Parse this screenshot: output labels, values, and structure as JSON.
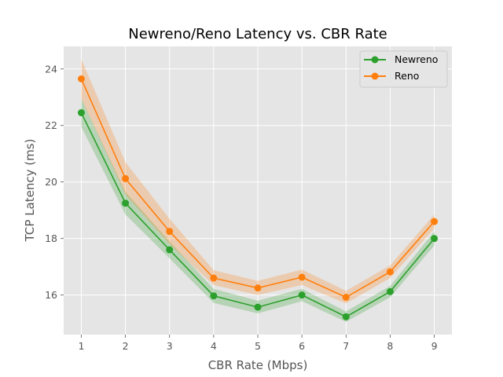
{
  "chart_data": {
    "type": "line",
    "title": "Newreno/Reno Latency vs. CBR Rate",
    "xlabel": "CBR Rate (Mbps)",
    "ylabel": "TCP Latency (ms)",
    "x": [
      1,
      2,
      3,
      4,
      5,
      6,
      7,
      8,
      9
    ],
    "xlim": [
      0.6,
      9.4
    ],
    "ylim": [
      14.6,
      24.8
    ],
    "xticks": [
      "1",
      "2",
      "3",
      "4",
      "5",
      "6",
      "7",
      "8",
      "9"
    ],
    "yticks": [
      "16",
      "18",
      "20",
      "22",
      "24"
    ],
    "grid": true,
    "legend_position": "top-right",
    "series": [
      {
        "name": "Newreno",
        "color": "#2ca02c",
        "values": [
          22.45,
          19.25,
          17.6,
          15.97,
          15.57,
          16.0,
          15.23,
          16.12,
          18.0
        ],
        "lower": [
          21.95,
          18.85,
          17.3,
          15.72,
          15.35,
          15.78,
          15.05,
          15.92,
          17.75
        ],
        "upper": [
          22.95,
          19.65,
          17.9,
          16.22,
          15.8,
          16.22,
          15.42,
          16.32,
          18.25
        ]
      },
      {
        "name": "Reno",
        "color": "#ff7f0e",
        "values": [
          23.65,
          20.12,
          18.25,
          16.6,
          16.25,
          16.63,
          15.92,
          16.82,
          18.6
        ],
        "lower": [
          22.95,
          19.55,
          17.8,
          16.35,
          16.0,
          16.35,
          15.7,
          16.6,
          18.35
        ],
        "upper": [
          24.35,
          20.7,
          18.7,
          16.88,
          16.5,
          16.9,
          16.15,
          17.05,
          18.85
        ]
      }
    ]
  }
}
